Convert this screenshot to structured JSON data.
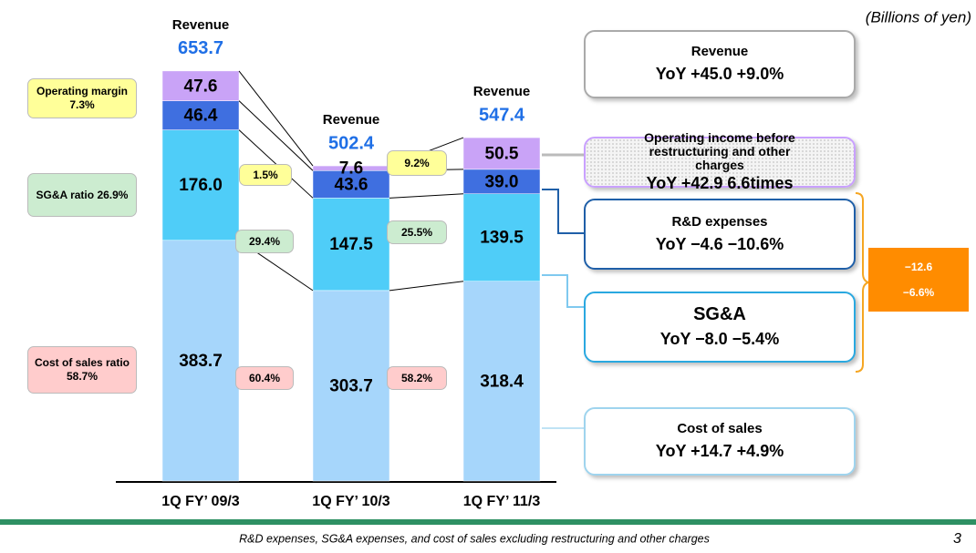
{
  "chart_data": {
    "type": "bar",
    "stacked": true,
    "unit_note": "(Billions of yen)",
    "categories": [
      "1Q FY’ 09/3",
      "1Q FY’ 10/3",
      "1Q FY’ 11/3"
    ],
    "ylim": [
      0,
      700
    ],
    "series": [
      {
        "name": "Cost of sales",
        "color": "#a6d6fb",
        "values": [
          383.7,
          303.7,
          318.4
        ],
        "change": "YoY +14.7  +4.9%"
      },
      {
        "name": "SG&A",
        "color": "#4fcdf8",
        "values": [
          176.0,
          147.5,
          139.5
        ],
        "value_labels": [
          "176.0",
          "147.5",
          "139.5"
        ],
        "change": "YoY −8.0  −5.4%"
      },
      {
        "name": "R&D expenses",
        "color": "#3f6fe0",
        "values": [
          46.4,
          43.6,
          39.0
        ],
        "value_labels": [
          "46.4",
          "43.6",
          "39.0"
        ],
        "change": "YoY −4.6  −10.6%"
      },
      {
        "name": "Operating income before restructuring and other charges",
        "color": "#c9a3f7",
        "values": [
          47.6,
          7.6,
          50.5
        ],
        "change": "YoY +42.9  6.6times"
      }
    ],
    "totals": {
      "label": "Revenue",
      "values": [
        653.7,
        502.4,
        547.4
      ],
      "change": "YoY +45.0  +9.0%"
    },
    "ratios": [
      {
        "label": "Operating margin",
        "values": [
          7.3,
          1.5,
          9.2
        ],
        "value_labels": [
          "7.3%",
          "1.5%",
          "9.2%"
        ],
        "color": "#ffff99"
      },
      {
        "label": "SG&A ratio",
        "values": [
          26.9,
          29.4,
          25.5
        ],
        "value_labels": [
          "26.9%",
          "29.4%",
          "25.5%"
        ],
        "color": "#ccecd0"
      },
      {
        "label": "Cost of sales ratio",
        "values": [
          58.7,
          60.4,
          58.2
        ],
        "value_labels": [
          "58.7%",
          "60.4%",
          "58.2%"
        ],
        "color": "#ffcccc"
      }
    ],
    "combined_change": [
      "−12.6",
      "−6.6%"
    ],
    "footnote": "R&D expenses, SG&A expenses, and cost of sales excluding restructuring and other charges",
    "page_number": "3"
  }
}
